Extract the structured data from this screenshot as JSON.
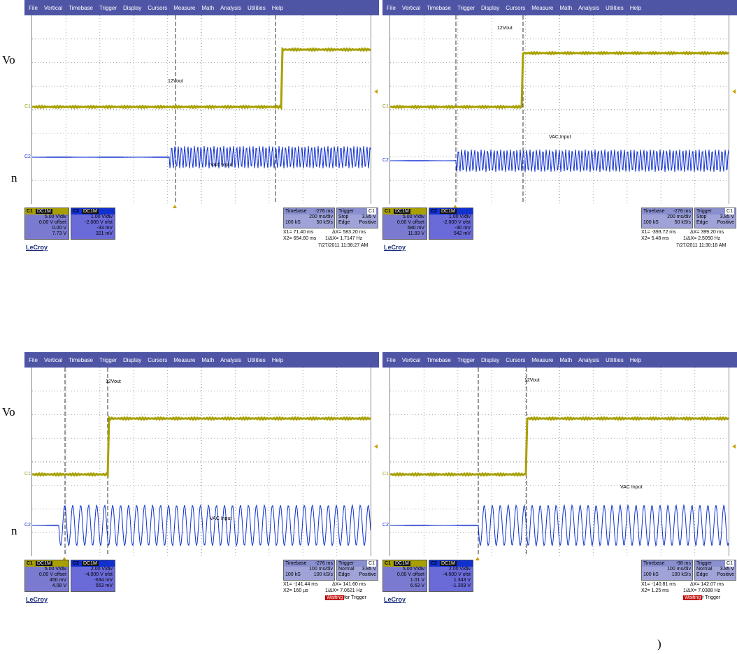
{
  "labels": {
    "vo": "Vo",
    "n": "n",
    "paren": ")"
  },
  "menu": [
    "File",
    "Vertical",
    "Timebase",
    "Trigger",
    "Display",
    "Cursors",
    "Measure",
    "Math",
    "Analysis",
    "Utilities",
    "Help"
  ],
  "colors": {
    "menubar": "#4f55a5",
    "ch1": "#a8a000",
    "ch2": "#1030d0"
  },
  "scopes": [
    {
      "ch1_label": "12Vout",
      "ch2_label": "VAC Input",
      "ch1": {
        "id": "C1",
        "coupling": "DC1M",
        "vdiv": "5.00 V/div",
        "offset": "0.00 V offset",
        "l1": "0.00 V",
        "l2": "7.73 V"
      },
      "ch2": {
        "id": "C2",
        "coupling": "DC1M",
        "vdiv": "1.00 V/div",
        "offset": "-2.000 V ofst",
        "l1": "-33 mV",
        "l2": "321 mV"
      },
      "timebase": "-276 ms",
      "tdiv": "200 ms/div",
      "samples": "100 kS",
      "rate": "50 kS/s",
      "trigger_mode": "Stop",
      "trigger_level": "3.85 V",
      "trigger_type": "Edge",
      "trigger_slope": "Positive",
      "trigger_ch": "C1",
      "x1": "X1=   71.40 ms",
      "dx": "ΔX=  583.20 ms",
      "x2": "X2=  654.60 ms",
      "inv": "1/ΔX=  1.7147 Hz",
      "timestamp": "7/27/2011 11:38:27 AM",
      "status_red": "",
      "status_rest": ""
    },
    {
      "ch1_label": "12Vout",
      "ch2_label": "VAC Input",
      "ch1": {
        "id": "C1",
        "coupling": "DC1M",
        "vdiv": "5.00 V/div",
        "offset": "0.00 V offset",
        "l1": "680 mV",
        "l2": "11.83 V"
      },
      "ch2": {
        "id": "C2",
        "coupling": "DC1M",
        "vdiv": "1.00 V/div",
        "offset": "-2.000 V ofst",
        "l1": "-30 mV",
        "l2": "542 mV"
      },
      "timebase": "-276 ms",
      "tdiv": "200 ms/div",
      "samples": "100 kS",
      "rate": "50 kS/s",
      "trigger_mode": "Stop",
      "trigger_level": "3.85 V",
      "trigger_type": "Edge",
      "trigger_slope": "Positive",
      "trigger_ch": "C1",
      "x1": "X1=  -393.72 ms",
      "dx": "ΔX=  399.20 ms",
      "x2": "X2=    5.48 ms",
      "inv": "1/ΔX=  2.5050 Hz",
      "timestamp": "7/27/2011 11:30:18 AM",
      "status_red": "",
      "status_rest": ""
    },
    {
      "ch1_label": "12Vout",
      "ch2_label": "VAC Input",
      "ch1": {
        "id": "C1",
        "coupling": "DC1M",
        "vdiv": "5.00 V/div",
        "offset": "0.00 V offset",
        "l1": "450 mV",
        "l2": "4.08 V"
      },
      "ch2": {
        "id": "C2",
        "coupling": "DC1M",
        "vdiv": "2.00 V/div",
        "offset": "-4.000 V ofst",
        "l1": "-634 mV",
        "l2": "553 mV"
      },
      "timebase": "-276 ms",
      "tdiv": "100 ms/div",
      "samples": "100 kS",
      "rate": "100 kS/s",
      "trigger_mode": "Normal",
      "trigger_level": "3.85 V",
      "trigger_type": "Edge",
      "trigger_slope": "Positive",
      "trigger_ch": "C1",
      "x1": "X1=  -141.44 ms",
      "dx": "ΔX=  141.60 ms",
      "x2": "X2=    160 µs",
      "inv": "1/ΔX=  7.0621 Hz",
      "timestamp": "",
      "status_red": "Waiting",
      "status_rest": "for Trigger"
    },
    {
      "ch1_label": "12Vout",
      "ch2_label": "VAC Input",
      "ch1": {
        "id": "C1",
        "coupling": "DC1M",
        "vdiv": "5.00 V/div",
        "offset": "0.00 V offset",
        "l1": "1.01 V",
        "l2": "6.63 V"
      },
      "ch2": {
        "id": "C2",
        "coupling": "DC1M",
        "vdiv": "2.00 V/div",
        "offset": "-4.000 V ofst",
        "l1": "1.343 V",
        "l2": "-1.303 V"
      },
      "timebase": "-98 ms",
      "tdiv": "100 ms/div",
      "samples": "100 kS",
      "rate": "100 kS/s",
      "trigger_mode": "Normal",
      "trigger_level": "3.85 V",
      "trigger_type": "Edge",
      "trigger_slope": "Positive",
      "trigger_ch": "C1",
      "x1": "X1=  -140.81 ms",
      "dx": "ΔX=  142.07 ms",
      "x2": "X2=    1.25 ms",
      "inv": "1/ΔX=  7.0388 Hz",
      "timestamp": "",
      "status_red": "Waiting",
      "status_rest": "r Trigger"
    }
  ],
  "logo": "LeCroy"
}
